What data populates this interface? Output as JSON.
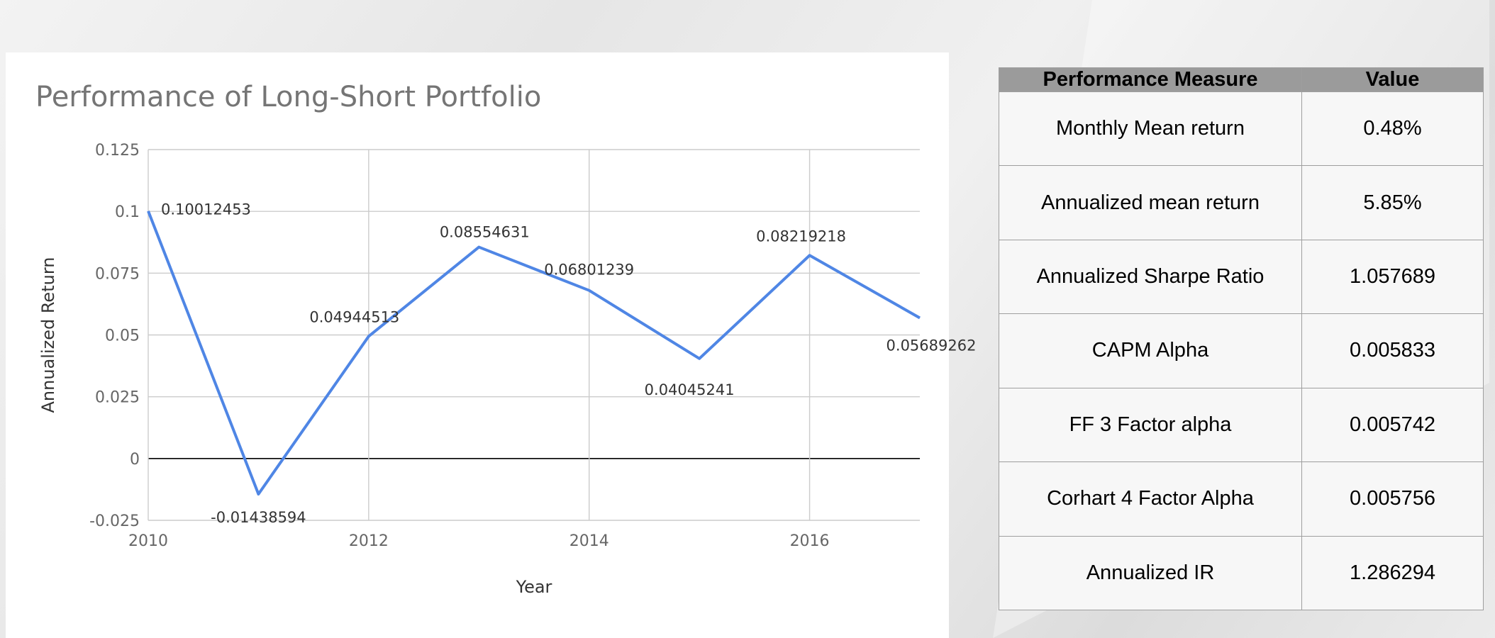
{
  "chart_data": {
    "type": "line",
    "title": "Performance of Long-Short Portfolio",
    "xlabel": "Year",
    "ylabel": "Annualized Return",
    "x": [
      2010,
      2011,
      2012,
      2013,
      2014,
      2015,
      2016,
      2017
    ],
    "series": [
      {
        "name": "Annualized Return",
        "values": [
          0.10012453,
          -0.01438594,
          0.04944513,
          0.08554631,
          0.06801239,
          0.04045241,
          0.08219218,
          0.05689262
        ],
        "labels": [
          "0.10012453",
          "-0.01438594",
          "0.04944513",
          "0.08554631",
          "0.06801239",
          "0.04045241",
          "0.08219218",
          "0.05689262"
        ],
        "color": "#4f86e5"
      }
    ],
    "xlim": [
      2010,
      2017
    ],
    "ylim": [
      -0.025,
      0.125
    ],
    "xticks": [
      2010,
      2012,
      2014,
      2016
    ],
    "xtick_labels": [
      "2010",
      "2012",
      "2014",
      "2016"
    ],
    "yticks": [
      -0.025,
      0,
      0.025,
      0.05,
      0.075,
      0.1,
      0.125
    ],
    "ytick_labels": [
      "-0.025",
      "0",
      "0.025",
      "0.05",
      "0.075",
      "0.1",
      "0.125"
    ],
    "grid": true
  },
  "table": {
    "headers": [
      "Performance Measure",
      "Value"
    ],
    "rows": [
      [
        "Monthly Mean return",
        "0.48%"
      ],
      [
        "Annualized mean return",
        "5.85%"
      ],
      [
        "Annualized Sharpe Ratio",
        "1.057689"
      ],
      [
        "CAPM Alpha",
        "0.005833"
      ],
      [
        "FF 3 Factor alpha",
        "0.005742"
      ],
      [
        "Corhart 4 Factor Alpha",
        "0.005756"
      ],
      [
        "Annualized IR",
        "1.286294"
      ]
    ]
  },
  "colors": {
    "line": "#4f86e5",
    "grid": "#cccccc",
    "zero_line": "#000000",
    "header_bg": "#9b9b9b"
  }
}
